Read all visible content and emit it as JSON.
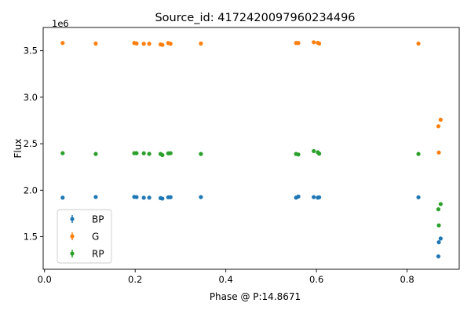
{
  "chart_data": {
    "type": "scatter",
    "title": "Source_id: 4172420097960234496",
    "xlabel": "Phase @ P:14.8671",
    "ylabel": "Flux",
    "y_offset_label": "1e6",
    "xlim": [
      -0.003,
      0.915
    ],
    "ylim": [
      1150000,
      3750000
    ],
    "x_ticks": [
      0.0,
      0.2,
      0.4,
      0.6,
      0.8
    ],
    "x_tick_labels": [
      "0.0",
      "0.2",
      "0.4",
      "0.6",
      "0.8"
    ],
    "y_ticks": [
      1500000,
      2000000,
      2500000,
      3000000,
      3500000
    ],
    "y_tick_labels": [
      "1.5",
      "2.0",
      "2.5",
      "3.0",
      "3.5"
    ],
    "grid": false,
    "legend_position": "lower-left",
    "series": [
      {
        "name": "BP",
        "color": "#1f77b4",
        "points": [
          [
            0.04,
            1920000
          ],
          [
            0.113,
            1927000
          ],
          [
            0.198,
            1928000
          ],
          [
            0.203,
            1926000
          ],
          [
            0.219,
            1919000
          ],
          [
            0.231,
            1920000
          ],
          [
            0.256,
            1915000
          ],
          [
            0.26,
            1910000
          ],
          [
            0.273,
            1924000
          ],
          [
            0.278,
            1925000
          ],
          [
            0.345,
            1926000
          ],
          [
            0.555,
            1920000
          ],
          [
            0.56,
            1932000
          ],
          [
            0.594,
            1926000
          ],
          [
            0.603,
            1920000
          ],
          [
            0.606,
            1924000
          ],
          [
            0.825,
            1924000
          ],
          [
            0.869,
            1288000
          ],
          [
            0.87,
            1440000
          ],
          [
            0.874,
            1480000
          ]
        ]
      },
      {
        "name": "G",
        "color": "#ff7f0e",
        "points": [
          [
            0.04,
            3583000
          ],
          [
            0.113,
            3577000
          ],
          [
            0.198,
            3583000
          ],
          [
            0.203,
            3578000
          ],
          [
            0.219,
            3575000
          ],
          [
            0.231,
            3575000
          ],
          [
            0.256,
            3568000
          ],
          [
            0.26,
            3563000
          ],
          [
            0.273,
            3582000
          ],
          [
            0.278,
            3575000
          ],
          [
            0.345,
            3577000
          ],
          [
            0.555,
            3583000
          ],
          [
            0.56,
            3583000
          ],
          [
            0.594,
            3591000
          ],
          [
            0.603,
            3585000
          ],
          [
            0.606,
            3577000
          ],
          [
            0.825,
            3577000
          ],
          [
            0.869,
            2688000
          ],
          [
            0.87,
            2405000
          ],
          [
            0.874,
            2758000
          ]
        ]
      },
      {
        "name": "RP",
        "color": "#2ca02c",
        "points": [
          [
            0.04,
            2398000
          ],
          [
            0.113,
            2390000
          ],
          [
            0.198,
            2398000
          ],
          [
            0.203,
            2398000
          ],
          [
            0.219,
            2397000
          ],
          [
            0.231,
            2391000
          ],
          [
            0.256,
            2390000
          ],
          [
            0.26,
            2378000
          ],
          [
            0.273,
            2396000
          ],
          [
            0.278,
            2398000
          ],
          [
            0.345,
            2390000
          ],
          [
            0.555,
            2390000
          ],
          [
            0.56,
            2384000
          ],
          [
            0.594,
            2421000
          ],
          [
            0.603,
            2408000
          ],
          [
            0.606,
            2393000
          ],
          [
            0.825,
            2390000
          ],
          [
            0.869,
            1795000
          ],
          [
            0.87,
            1622000
          ],
          [
            0.874,
            1851000
          ]
        ]
      }
    ]
  }
}
